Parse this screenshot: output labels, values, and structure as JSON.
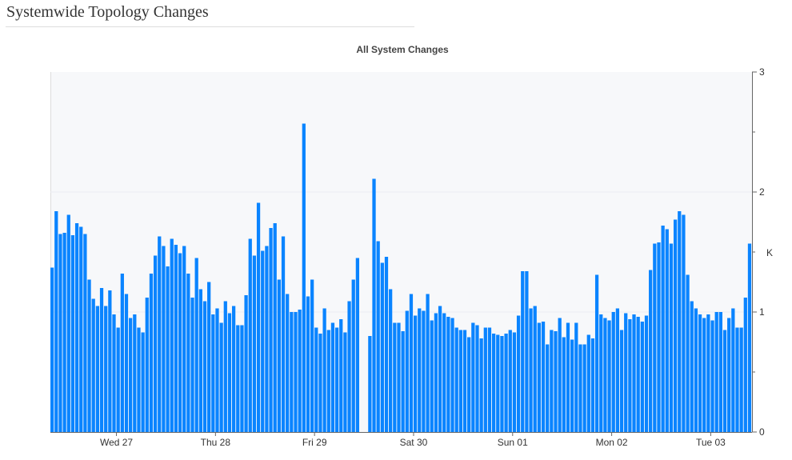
{
  "page": {
    "title": "Systemwide Topology Changes"
  },
  "chart_data": {
    "type": "bar",
    "title": "All System Changes",
    "ylabel": "K",
    "ylim": [
      0,
      3
    ],
    "y_ticks": [
      "0",
      "1",
      "2",
      "3"
    ],
    "y_axis_side": "right",
    "grid": true,
    "x_start": "Tue 26 08:00",
    "x_step": "1 hour",
    "x_ticks": [
      "Wed 27",
      "Thu 28",
      "Fri 29",
      "Sat 30",
      "Sun 01",
      "Mon 02",
      "Tue 03"
    ],
    "bar_color": "#0a84ff",
    "values_unit": "K",
    "values": [
      1.37,
      1.84,
      1.65,
      1.66,
      1.81,
      1.64,
      1.74,
      1.71,
      1.65,
      1.27,
      1.11,
      1.05,
      1.2,
      1.05,
      1.18,
      0.98,
      0.87,
      1.32,
      1.15,
      0.95,
      0.98,
      0.87,
      0.83,
      1.12,
      1.32,
      1.47,
      1.63,
      1.55,
      1.38,
      1.61,
      1.56,
      1.49,
      1.55,
      1.32,
      1.12,
      1.45,
      1.19,
      1.09,
      1.25,
      0.98,
      1.03,
      0.91,
      1.09,
      0.99,
      1.05,
      0.89,
      0.89,
      1.14,
      1.61,
      1.47,
      1.91,
      1.51,
      1.55,
      1.7,
      1.74,
      1.27,
      1.63,
      1.15,
      1.0,
      1.0,
      1.02,
      2.57,
      1.13,
      1.27,
      0.87,
      0.82,
      1.03,
      0.85,
      0.91,
      0.87,
      0.94,
      0.83,
      1.09,
      1.27,
      1.45,
      0,
      0,
      0.8,
      2.11,
      1.59,
      1.41,
      1.46,
      1.19,
      0.91,
      0.91,
      0.84,
      1.01,
      1.15,
      0.97,
      1.03,
      1.01,
      1.15,
      0.93,
      0.99,
      1.05,
      0.99,
      0.96,
      0.95,
      0.87,
      0.85,
      0.85,
      0.79,
      0.91,
      0.89,
      0.78,
      0.87,
      0.87,
      0.82,
      0.81,
      0.8,
      0.82,
      0.85,
      0.83,
      0.97,
      1.34,
      1.34,
      1.03,
      1.05,
      0.91,
      0.92,
      0.73,
      0.85,
      0.84,
      0.95,
      0.79,
      0.91,
      0.77,
      0.91,
      0.73,
      0.73,
      0.81,
      0.78,
      1.31,
      0.98,
      0.95,
      0.93,
      1.0,
      1.03,
      0.85,
      0.99,
      0.94,
      0.98,
      0.96,
      0.92,
      0.97,
      1.35,
      1.57,
      1.58,
      1.72,
      1.69,
      1.57,
      1.77,
      1.84,
      1.81,
      1.31,
      1.09,
      1.03,
      0.98,
      0.95,
      0.98,
      0.93,
      1.0,
      1.0,
      0.85,
      0.95,
      1.03,
      0.87,
      0.87,
      1.12,
      1.57
    ]
  }
}
